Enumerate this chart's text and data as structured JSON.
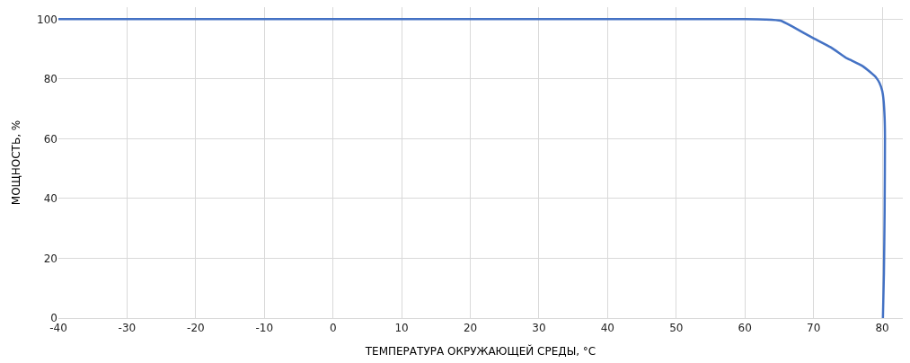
{
  "chart_data": {
    "type": "line",
    "xlabel": "ТЕМПЕРАТУРА ОКРУЖАЮЩЕЙ СРЕДЫ, °C",
    "ylabel": "МОЩНОСТЬ, %",
    "series": [
      {
        "color": "#4472c4",
        "x": [
          -40,
          -20,
          0,
          20,
          40,
          60,
          63,
          65.2,
          67,
          70,
          72.5,
          74.7,
          75.6,
          77,
          78.3,
          79.1,
          79.6,
          80,
          80.2,
          80.35,
          80.4,
          80.35,
          80.25,
          80.1
        ],
        "values": [
          100,
          100,
          100,
          100,
          100,
          100,
          99.9,
          99.5,
          97.4,
          93.6,
          90.6,
          87.1,
          86.1,
          84.5,
          82.2,
          80.5,
          78.7,
          76,
          72.8,
          67,
          60.9,
          36,
          15,
          0
        ]
      }
    ],
    "xlim": [
      -40,
      83
    ],
    "xticks": [
      -40,
      -30,
      -20,
      -10,
      0,
      10,
      20,
      30,
      40,
      50,
      60,
      70,
      80
    ],
    "ylim": [
      0,
      104
    ],
    "yticks": [
      0,
      20,
      40,
      60,
      80,
      100
    ],
    "grid": true,
    "line_style": "solid",
    "marker": "none"
  }
}
